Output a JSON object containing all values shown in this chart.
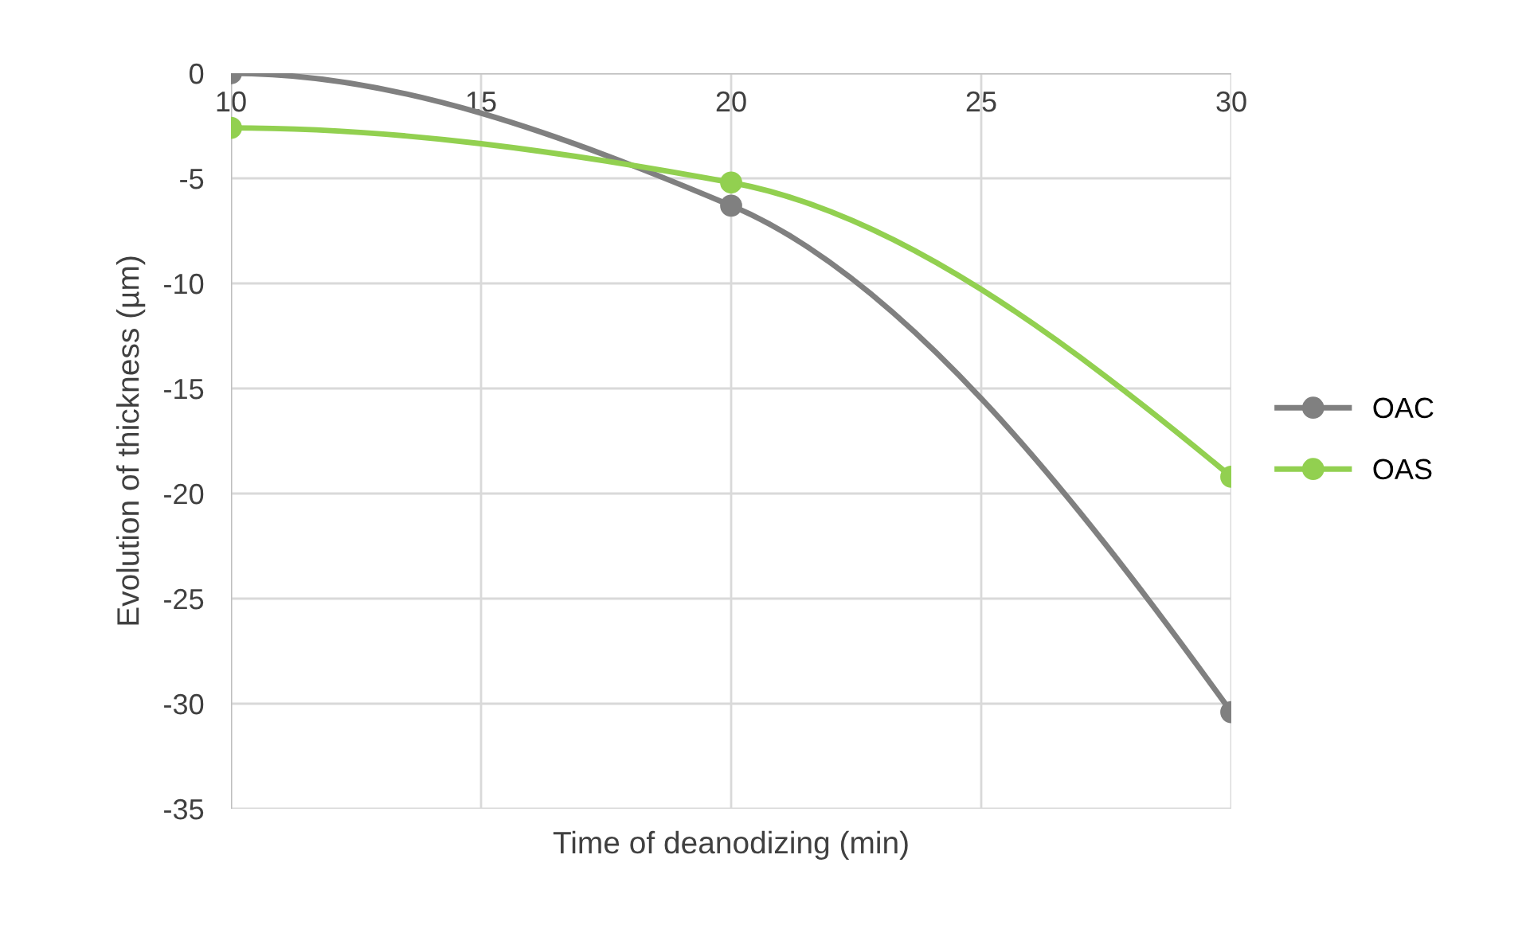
{
  "chart_data": {
    "type": "line",
    "xlabel": "Time of deanodizing (min)",
    "ylabel": "Evolution of thickness (µm)",
    "x": [
      10,
      20,
      30
    ],
    "series": [
      {
        "name": "OAC",
        "color": "#808080",
        "values": [
          0,
          -6.3,
          -30.4
        ]
      },
      {
        "name": "OAS",
        "color": "#92d050",
        "values": [
          -2.6,
          -5.2,
          -19.2
        ]
      }
    ],
    "xlim": [
      10,
      30
    ],
    "xticks": [
      10,
      15,
      20,
      25,
      30
    ],
    "ylim": [
      -35,
      0
    ],
    "yticks": [
      -35,
      -30,
      -25,
      -20,
      -15,
      -10,
      -5,
      0
    ],
    "grid": true,
    "legend": "right",
    "marker": "circle",
    "line_style": "solid"
  }
}
